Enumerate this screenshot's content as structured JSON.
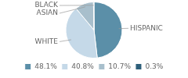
{
  "chart_data": {
    "type": "pie",
    "categories": [
      "HISPANIC",
      "WHITE",
      "ASIAN",
      "BLACK"
    ],
    "values": [
      48.1,
      40.8,
      10.7,
      0.3
    ],
    "colors": [
      "#5b8fa8",
      "#c5d9e8",
      "#a8bfcc",
      "#2e5f7a"
    ],
    "value_labels": [
      "48.1%",
      "40.8%",
      "10.7%",
      "0.3%"
    ],
    "legend": "bottom"
  }
}
